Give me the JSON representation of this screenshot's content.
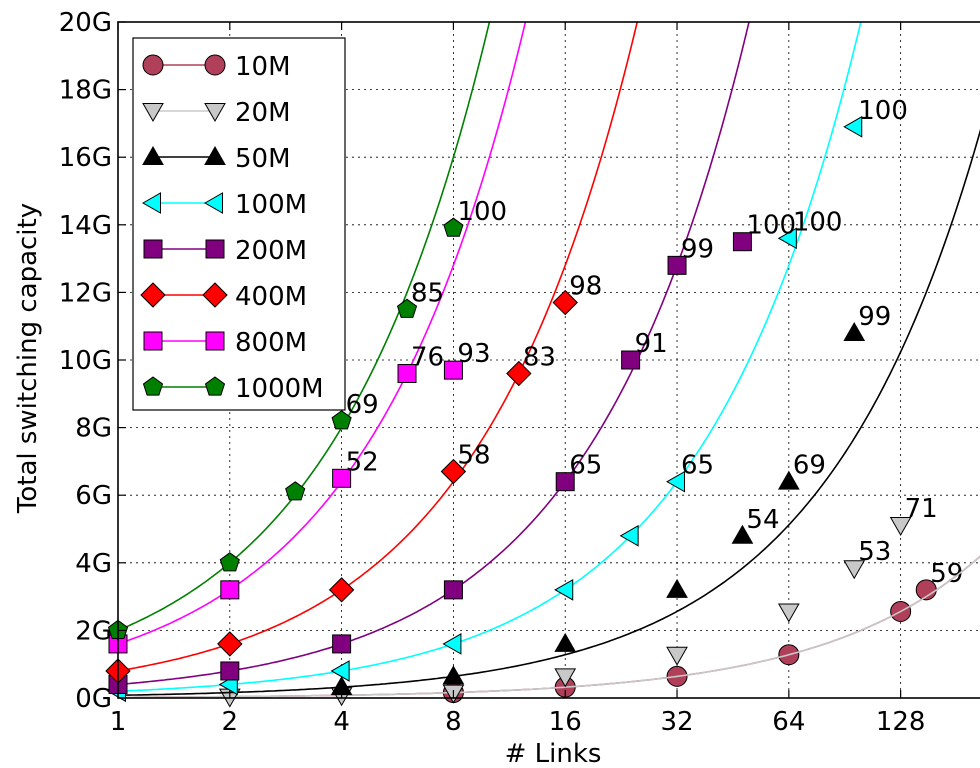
{
  "chart_data": {
    "type": "line",
    "xlabel": "# Links",
    "ylabel": "Total switching capacity",
    "x_scale": "log2",
    "xlim": [
      1,
      220
    ],
    "ylim": [
      0,
      20
    ],
    "x_ticks": [
      1,
      2,
      4,
      8,
      16,
      32,
      64,
      128
    ],
    "x_tick_labels": [
      "1",
      "2",
      "4",
      "8",
      "16",
      "32",
      "64",
      "128"
    ],
    "y_ticks": [
      0,
      2,
      4,
      6,
      8,
      10,
      12,
      14,
      16,
      18,
      20
    ],
    "y_tick_labels": [
      "0G",
      "2G",
      "4G",
      "6G",
      "8G",
      "10G",
      "12G",
      "14G",
      "16G",
      "18G",
      "20G"
    ],
    "grid": true,
    "legend_position": "top-left",
    "series": [
      {
        "name": "10M",
        "color": "#b0405a",
        "marker": "circle",
        "points": [
          [
            8,
            0.16
          ],
          [
            16,
            0.32
          ],
          [
            32,
            0.64
          ],
          [
            64,
            1.28
          ],
          [
            128,
            2.56
          ],
          [
            150,
            3.2
          ]
        ],
        "annotations": [
          {
            "x": 150,
            "y": 3.2,
            "text": "59"
          }
        ]
      },
      {
        "name": "20M",
        "color": "#c8c8c8",
        "marker": "triangle-down",
        "points": [
          [
            2,
            0.04
          ],
          [
            4,
            0.08
          ],
          [
            8,
            0.16
          ],
          [
            16,
            0.64
          ],
          [
            32,
            1.28
          ],
          [
            64,
            2.56
          ],
          [
            96,
            3.84
          ],
          [
            128,
            5.12
          ]
        ],
        "annotations": [
          {
            "x": 96,
            "y": 3.84,
            "text": "53"
          },
          {
            "x": 128,
            "y": 5.12,
            "text": "71"
          }
        ]
      },
      {
        "name": "50M",
        "color": "#000000",
        "marker": "triangle-up",
        "points": [
          [
            4,
            0.32
          ],
          [
            8,
            0.64
          ],
          [
            16,
            1.6
          ],
          [
            32,
            3.2
          ],
          [
            48,
            4.8
          ],
          [
            64,
            6.4
          ],
          [
            96,
            10.8
          ]
        ],
        "annotations": [
          {
            "x": 48,
            "y": 4.8,
            "text": "54"
          },
          {
            "x": 64,
            "y": 6.4,
            "text": "69"
          },
          {
            "x": 96,
            "y": 10.8,
            "text": "99"
          }
        ]
      },
      {
        "name": "100M",
        "color": "#00ffff",
        "marker": "triangle-left",
        "points": [
          [
            1,
            0.2
          ],
          [
            2,
            0.4
          ],
          [
            4,
            0.8
          ],
          [
            8,
            1.6
          ],
          [
            16,
            3.2
          ],
          [
            24,
            4.8
          ],
          [
            32,
            6.4
          ],
          [
            64,
            13.6
          ],
          [
            96,
            16.9
          ]
        ],
        "annotations": [
          {
            "x": 32,
            "y": 6.4,
            "text": "65"
          },
          {
            "x": 64,
            "y": 13.6,
            "text": "100"
          },
          {
            "x": 96,
            "y": 16.9,
            "text": "100"
          }
        ]
      },
      {
        "name": "200M",
        "color": "#800080",
        "marker": "square",
        "points": [
          [
            1,
            0.4
          ],
          [
            2,
            0.8
          ],
          [
            4,
            1.6
          ],
          [
            8,
            3.2
          ],
          [
            16,
            6.4
          ],
          [
            24,
            10.0
          ],
          [
            32,
            12.8
          ],
          [
            48,
            13.5
          ]
        ],
        "annotations": [
          {
            "x": 16,
            "y": 6.4,
            "text": "65"
          },
          {
            "x": 24,
            "y": 10.0,
            "text": "91"
          },
          {
            "x": 32,
            "y": 12.8,
            "text": "99"
          },
          {
            "x": 48,
            "y": 13.5,
            "text": "100"
          }
        ]
      },
      {
        "name": "400M",
        "color": "#ff0000",
        "marker": "diamond",
        "points": [
          [
            1,
            0.8
          ],
          [
            2,
            1.6
          ],
          [
            4,
            3.2
          ],
          [
            8,
            6.7
          ],
          [
            12,
            9.6
          ],
          [
            16,
            11.7
          ]
        ],
        "annotations": [
          {
            "x": 8,
            "y": 6.7,
            "text": "58"
          },
          {
            "x": 12,
            "y": 9.6,
            "text": "83"
          },
          {
            "x": 16,
            "y": 11.7,
            "text": "98"
          }
        ]
      },
      {
        "name": "800M",
        "color": "#ff00ff",
        "marker": "square",
        "points": [
          [
            1,
            1.6
          ],
          [
            2,
            3.2
          ],
          [
            4,
            6.5
          ],
          [
            6,
            9.6
          ],
          [
            8,
            9.7
          ]
        ],
        "annotations": [
          {
            "x": 4,
            "y": 6.5,
            "text": "52"
          },
          {
            "x": 6,
            "y": 9.6,
            "text": "76"
          },
          {
            "x": 8,
            "y": 9.7,
            "text": "93"
          }
        ]
      },
      {
        "name": "1000M",
        "color": "#008000",
        "marker": "pentagon",
        "points": [
          [
            1,
            2.0
          ],
          [
            2,
            4.0
          ],
          [
            3,
            6.1
          ],
          [
            4,
            8.2
          ],
          [
            6,
            11.5
          ],
          [
            8,
            13.9
          ]
        ],
        "annotations": [
          {
            "x": 4,
            "y": 8.2,
            "text": "69"
          },
          {
            "x": 6,
            "y": 11.5,
            "text": "85"
          },
          {
            "x": 8,
            "y": 13.9,
            "text": "100"
          }
        ]
      }
    ]
  }
}
